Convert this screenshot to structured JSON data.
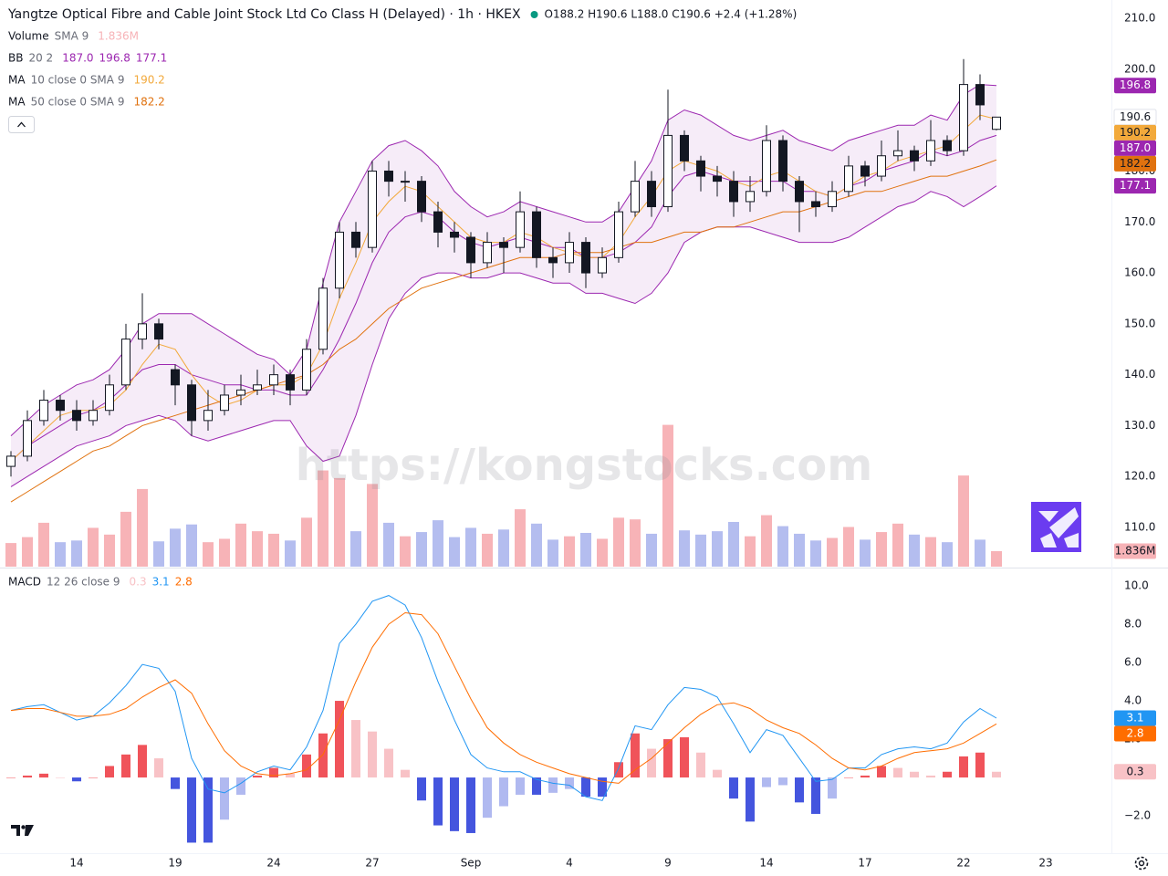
{
  "chart_data": [
    {
      "type": "candlestick",
      "title": "Yangtze Optical Fibre and Cable Joint Stock Ltd Co Class H (Delayed) · 1h · HKEX",
      "ohlc_label": "O188.2 H190.6 L188.0 C190.6 +2.4 (+1.28%)",
      "watermark": "https://kongstocks.com",
      "categories": [
        null,
        null,
        null,
        null,
        "14",
        null,
        null,
        null,
        null,
        null,
        "19",
        null,
        null,
        null,
        null,
        null,
        "24",
        null,
        null,
        null,
        null,
        null,
        "27",
        null,
        null,
        null,
        null,
        null,
        "Sep",
        null,
        null,
        null,
        null,
        null,
        "4",
        null,
        null,
        null,
        null,
        null,
        "9",
        null,
        null,
        null,
        null,
        null,
        "14",
        null,
        null,
        null,
        null,
        null,
        "17",
        null,
        null,
        null,
        null,
        null,
        "22",
        null,
        null,
        null,
        null,
        "23"
      ],
      "open": [
        122,
        124,
        131,
        135,
        133,
        131,
        133,
        138,
        147,
        150,
        141,
        138,
        131,
        133,
        136,
        137,
        138,
        140,
        137,
        145,
        157,
        168,
        165,
        180,
        178,
        178,
        172,
        168,
        167,
        162,
        166,
        165,
        172,
        163,
        162,
        166,
        160,
        163,
        172,
        178,
        173,
        187,
        182,
        179,
        178,
        174,
        176,
        186,
        178,
        174,
        173,
        176,
        181,
        179,
        183,
        184,
        182,
        186,
        184,
        197,
        188.2,
        null,
        null,
        null
      ],
      "high": [
        125,
        133,
        137,
        136,
        135,
        135,
        140,
        150,
        156,
        151,
        142,
        139,
        137,
        138,
        140,
        141,
        142,
        141,
        147,
        159,
        170,
        170,
        182,
        182,
        180,
        179,
        174,
        170,
        168,
        168,
        167,
        176,
        173,
        165,
        168,
        167,
        165,
        174,
        182,
        180,
        196,
        188,
        183,
        181,
        180,
        179,
        189,
        187,
        179,
        176,
        178,
        183,
        182,
        186,
        188,
        185,
        190,
        187,
        202,
        199,
        190.6,
        null,
        null,
        null
      ],
      "low": [
        120,
        123,
        130,
        131,
        129,
        130,
        132,
        137,
        145,
        145,
        134,
        128,
        129,
        132,
        134,
        136,
        136,
        134,
        136,
        144,
        155,
        163,
        164,
        175,
        174,
        170,
        165,
        164,
        159,
        161,
        160,
        164,
        161,
        159,
        160,
        157,
        159,
        162,
        171,
        171,
        172,
        180,
        176,
        175,
        171,
        172,
        175,
        176,
        168,
        171,
        172,
        175,
        177,
        178,
        182,
        180,
        181,
        183,
        183,
        190,
        188.0,
        null,
        null,
        null
      ],
      "close": [
        124,
        131,
        135,
        133,
        131,
        133,
        138,
        147,
        150,
        147,
        138,
        131,
        133,
        136,
        137,
        138,
        140,
        137,
        145,
        157,
        168,
        165,
        180,
        178,
        178,
        172,
        168,
        167,
        162,
        166,
        165,
        172,
        163,
        162,
        166,
        160,
        163,
        172,
        178,
        173,
        187,
        182,
        179,
        178,
        174,
        176,
        186,
        178,
        174,
        173,
        176,
        181,
        179,
        183,
        184,
        182,
        186,
        184,
        197,
        193,
        190.6,
        null,
        null,
        null
      ],
      "up_color": "#ffffff",
      "down_color": "#131722",
      "wick_color": "#131722",
      "ylim": [
        102.3,
        213.6
      ],
      "yticks": [
        {
          "value": 110,
          "label": "110.0"
        },
        {
          "value": 120,
          "label": "120.0"
        },
        {
          "value": 130,
          "label": "130.0"
        },
        {
          "value": 140,
          "label": "140.0"
        },
        {
          "value": 150,
          "label": "150.0"
        },
        {
          "value": 160,
          "label": "160.0"
        },
        {
          "value": 170,
          "label": "170.0"
        },
        {
          "value": 180,
          "label": "180.0"
        },
        {
          "value": 190,
          "label": "190.0"
        },
        {
          "value": 200,
          "label": "200.0"
        },
        {
          "value": 210,
          "label": "210.0"
        }
      ],
      "grid": false,
      "volume": {
        "name": "Volume",
        "params": "SMA 9",
        "readout": "1.836M",
        "up_color": "#f7b3b7",
        "down_color": "#b4bdef",
        "ylim": [
          0,
          20000000
        ],
        "values": [
          2800000,
          3500000,
          5200000,
          2900000,
          3100000,
          4600000,
          3800000,
          6500000,
          9200000,
          3000000,
          4500000,
          5000000,
          2900000,
          3300000,
          5100000,
          4200000,
          3900000,
          3100000,
          5800000,
          11400000,
          10500000,
          4200000,
          9800000,
          5200000,
          3600000,
          4100000,
          5500000,
          3500000,
          4600000,
          3900000,
          4400000,
          6800000,
          5100000,
          3200000,
          3600000,
          4000000,
          3300000,
          5800000,
          5600000,
          3900000,
          16800000,
          4300000,
          3800000,
          4200000,
          5300000,
          3600000,
          6100000,
          4800000,
          3900000,
          3100000,
          3400000,
          4700000,
          3200000,
          4100000,
          5100000,
          3800000,
          3500000,
          2900000,
          10800000,
          3200000,
          1836000,
          null,
          null,
          null
        ]
      },
      "bb": {
        "name": "BB",
        "params": "20 2",
        "color": "#9c27b0",
        "fill": "rgba(156,39,176,0.09)",
        "readouts": [
          "187.0",
          "196.8",
          "177.1"
        ],
        "basis": [
          123,
          126,
          128,
          130,
          132,
          133,
          135,
          138,
          141,
          142,
          142,
          140,
          139,
          138,
          138,
          137,
          137,
          136,
          136,
          141,
          147,
          154,
          162,
          168,
          171,
          172,
          171,
          168,
          166,
          165,
          166,
          167,
          166,
          165,
          165,
          163,
          163,
          164,
          166,
          169,
          175,
          179,
          180,
          179,
          178,
          178,
          178,
          178,
          176,
          176,
          175,
          177,
          178,
          180,
          181,
          182,
          184,
          183,
          184,
          186,
          187,
          null,
          null,
          null
        ],
        "upper": [
          128,
          131,
          134,
          136,
          138,
          139,
          141,
          145,
          150,
          152,
          152,
          152,
          150,
          148,
          146,
          144,
          143,
          140,
          145,
          158,
          170,
          176,
          182,
          185,
          186,
          184,
          181,
          176,
          173,
          171,
          172,
          174,
          173,
          172,
          171,
          170,
          170,
          172,
          177,
          182,
          190,
          192,
          191,
          189,
          187,
          186,
          187,
          188,
          186,
          185,
          184,
          186,
          187,
          188,
          189,
          189,
          191,
          190,
          195,
          197,
          196.8,
          null,
          null,
          null
        ],
        "lower": [
          118,
          120,
          122,
          124,
          126,
          127,
          128,
          130,
          131,
          132,
          131,
          128,
          127,
          128,
          129,
          130,
          131,
          131,
          126,
          123,
          124,
          132,
          142,
          151,
          156,
          159,
          160,
          160,
          159,
          159,
          160,
          160,
          159,
          158,
          158,
          156,
          156,
          155,
          154,
          156,
          160,
          166,
          168,
          169,
          169,
          169,
          168,
          167,
          166,
          166,
          166,
          167,
          169,
          171,
          173,
          174,
          176,
          175,
          173,
          175,
          177.1,
          null,
          null,
          null
        ]
      },
      "ma": [
        {
          "name": "MA",
          "params": "10 close 0 SMA 9",
          "color": "#f2a93b",
          "values": [
            123,
            126,
            129,
            132,
            133,
            133,
            134,
            137,
            142,
            146,
            145,
            140,
            136,
            134,
            135,
            137,
            138,
            138,
            140,
            146,
            155,
            162,
            170,
            174,
            177,
            176,
            173,
            170,
            167,
            166,
            166,
            168,
            167,
            165,
            164,
            163,
            163,
            166,
            171,
            175,
            180,
            182,
            181,
            180,
            178,
            177,
            179,
            180,
            178,
            176,
            175,
            177,
            179,
            180,
            182,
            183,
            184,
            185,
            188,
            191,
            190.2,
            null,
            null,
            null
          ]
        },
        {
          "name": "MA",
          "params": "50 close 0 SMA 9",
          "color": "#e0720f",
          "values": [
            115,
            117,
            119,
            121,
            123,
            125,
            126,
            128,
            130,
            131,
            132,
            133,
            134,
            135,
            136,
            137,
            138,
            139,
            140,
            142,
            145,
            147,
            150,
            153,
            155,
            157,
            158,
            159,
            160,
            161,
            162,
            163,
            163,
            163,
            164,
            164,
            164,
            165,
            166,
            166,
            167,
            168,
            168,
            169,
            169,
            170,
            171,
            172,
            172,
            173,
            174,
            175,
            176,
            176,
            177,
            178,
            179,
            179,
            180,
            181,
            182.2,
            null,
            null,
            null
          ]
        }
      ]
    },
    {
      "type": "macd",
      "name": "MACD",
      "params": "12 26 close 9",
      "ylim": [
        -3.95,
        10.86
      ],
      "yticks": [
        {
          "value": 10,
          "label": "10.0"
        },
        {
          "value": 8,
          "label": "8.0"
        },
        {
          "value": 6,
          "label": "6.0"
        },
        {
          "value": 4,
          "label": "4.0"
        },
        {
          "value": 2,
          "label": "2.0"
        },
        {
          "value": -2,
          "label": "−2.0"
        }
      ],
      "histogram": {
        "rising_above": "#f0535a",
        "falling_above": "#f8c2c6",
        "falling_below": "#4455de",
        "rising_below": "#b0b9f0",
        "values": [
          0.0,
          0.1,
          0.2,
          0.0,
          -0.2,
          0.0,
          0.6,
          1.2,
          1.7,
          1.0,
          -0.6,
          -3.4,
          -3.4,
          -2.2,
          -0.9,
          0.1,
          0.5,
          0.2,
          1.2,
          2.3,
          4.0,
          3.0,
          2.4,
          1.5,
          0.4,
          -1.2,
          -2.5,
          -2.8,
          -2.9,
          -2.1,
          -1.5,
          -0.9,
          -0.9,
          -0.8,
          -0.6,
          -1.0,
          -1.0,
          0.8,
          2.3,
          1.5,
          2.0,
          2.1,
          1.3,
          0.4,
          -1.1,
          -2.3,
          -0.5,
          -0.4,
          -1.3,
          -1.9,
          -1.1,
          0.0,
          0.1,
          0.6,
          0.5,
          0.3,
          0.1,
          0.3,
          1.1,
          1.3,
          0.3,
          null,
          null,
          null
        ]
      },
      "macd": {
        "color": "#2196f3",
        "values": [
          3.5,
          3.7,
          3.8,
          3.4,
          3.0,
          3.2,
          3.9,
          4.8,
          5.9,
          5.7,
          4.5,
          1.0,
          -0.6,
          -0.8,
          -0.3,
          0.3,
          0.6,
          0.4,
          1.6,
          3.5,
          7.0,
          8.0,
          9.2,
          9.5,
          9.0,
          7.3,
          5.0,
          3.0,
          1.2,
          0.5,
          0.3,
          0.3,
          -0.1,
          -0.3,
          -0.4,
          -1.0,
          -1.2,
          0.5,
          2.7,
          2.5,
          3.8,
          4.7,
          4.6,
          4.2,
          2.8,
          1.3,
          2.5,
          2.2,
          1.0,
          -0.2,
          -0.1,
          0.5,
          0.5,
          1.2,
          1.5,
          1.6,
          1.5,
          1.8,
          2.9,
          3.6,
          3.1,
          null,
          null,
          null
        ]
      },
      "signal": {
        "color": "#ff6d00",
        "values": [
          3.5,
          3.6,
          3.6,
          3.4,
          3.2,
          3.2,
          3.3,
          3.6,
          4.2,
          4.7,
          5.1,
          4.4,
          2.8,
          1.4,
          0.6,
          0.2,
          0.1,
          0.2,
          0.4,
          1.2,
          3.0,
          5.0,
          6.8,
          8.0,
          8.6,
          8.5,
          7.5,
          5.8,
          4.1,
          2.6,
          1.8,
          1.2,
          0.8,
          0.5,
          0.2,
          0.0,
          -0.2,
          -0.3,
          0.4,
          1.0,
          1.8,
          2.6,
          3.3,
          3.8,
          3.9,
          3.6,
          3.0,
          2.6,
          2.3,
          1.7,
          1.0,
          0.5,
          0.4,
          0.6,
          1.0,
          1.3,
          1.4,
          1.5,
          1.8,
          2.3,
          2.8,
          null,
          null,
          null
        ]
      }
    }
  ]
}
